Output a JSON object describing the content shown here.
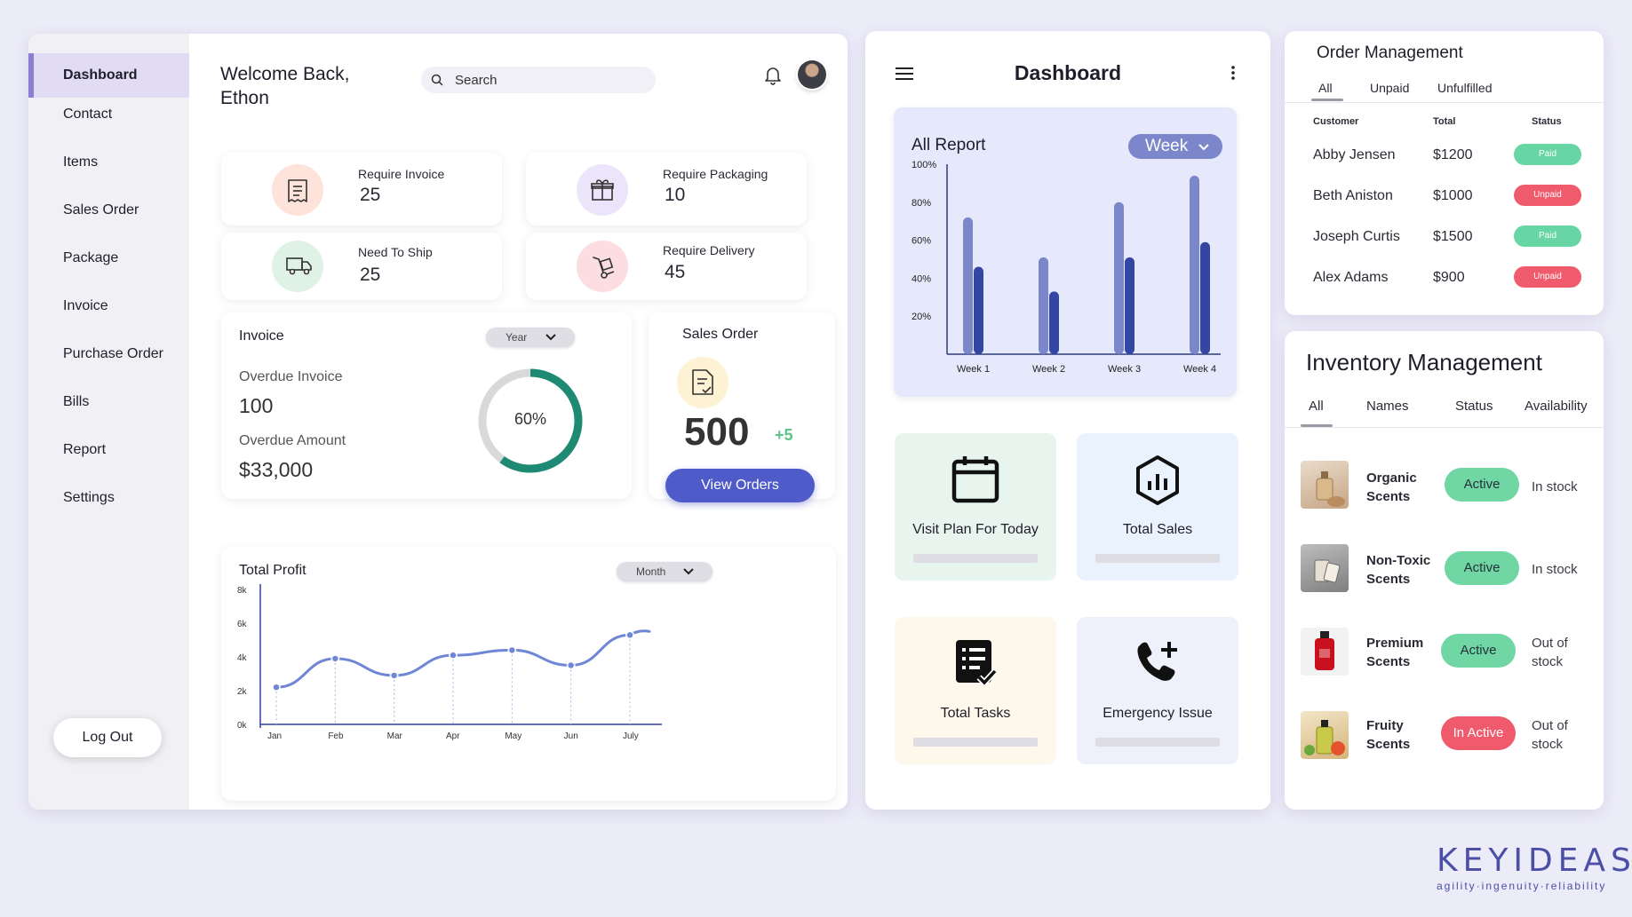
{
  "sidebar": {
    "items": [
      {
        "label": "Dashboard",
        "active": true
      },
      {
        "label": "Contact"
      },
      {
        "label": "Items"
      },
      {
        "label": "Sales Order"
      },
      {
        "label": "Package"
      },
      {
        "label": "Invoice"
      },
      {
        "label": "Purchase Order"
      },
      {
        "label": "Bills"
      },
      {
        "label": "Report"
      },
      {
        "label": "Settings"
      }
    ],
    "logout_label": "Log Out"
  },
  "header": {
    "welcome": "Welcome Back,",
    "user_name": "Ethon",
    "search_placeholder": "Search"
  },
  "stats": [
    {
      "label": "Require Invoice",
      "value": "25",
      "icon": "invoice-icon",
      "color": "#fde3d9"
    },
    {
      "label": "Require Packaging",
      "value": "10",
      "icon": "gift-box-icon",
      "color": "#ece4fb"
    },
    {
      "label": "Need To Ship",
      "value": "25",
      "icon": "truck-icon",
      "color": "#dff2e5"
    },
    {
      "label": "Require Delivery",
      "value": "45",
      "icon": "hand-truck-icon",
      "color": "#fcdde1"
    }
  ],
  "invoice": {
    "title": "Invoice",
    "period": "Year",
    "overdue_invoice_label": "Overdue Invoice",
    "overdue_invoice_value": "100",
    "overdue_amount_label": "Overdue Amount",
    "overdue_amount_value": "$33,000",
    "progress_label": "60%",
    "progress": 0.6,
    "progress_color": "#1f8a73"
  },
  "sales_order": {
    "title": "Sales Order",
    "value": "500",
    "delta": "+5",
    "button_label": "View Orders"
  },
  "profit": {
    "title": "Total Profit",
    "period": "Month"
  },
  "chart_data": [
    {
      "type": "line",
      "title": "Total Profit",
      "categories": [
        "Jan",
        "Feb",
        "Mar",
        "Apr",
        "May",
        "Jun",
        "July"
      ],
      "y_ticks": [
        "8k",
        "6k",
        "4k",
        "2k",
        "0k"
      ],
      "points": [
        {
          "x": "Jan",
          "y": 2.2
        },
        {
          "x": "Feb",
          "y": 3.9
        },
        {
          "x": "Mar",
          "y": 2.9
        },
        {
          "x": "Apr",
          "y": 4.1
        },
        {
          "x": "May",
          "y": 4.4
        },
        {
          "x": "Jun",
          "y": 3.5
        },
        {
          "x": "July",
          "y": 5.3
        }
      ],
      "ylim": [
        0,
        8
      ],
      "color": "#6f86d6"
    },
    {
      "type": "bar",
      "title": "All Report",
      "categories": [
        "Week 1",
        "Week 2",
        "Week 3",
        "Week 4"
      ],
      "y_ticks": [
        "100%",
        "80%",
        "60%",
        "40%",
        "20%"
      ],
      "series": [
        {
          "values": [
            72,
            51,
            80,
            94
          ],
          "color": "#7b87c8"
        },
        {
          "values": [
            46,
            33,
            51,
            59
          ],
          "color": "#3346a3"
        }
      ],
      "ylim": [
        0,
        100
      ]
    }
  ],
  "mobile": {
    "title": "Dashboard",
    "report_title": "All Report",
    "report_period": "Week",
    "tiles": [
      {
        "label": "Visit Plan For Today",
        "icon": "calendar-icon",
        "bg": "#e8f5ee"
      },
      {
        "label": "Total Sales",
        "icon": "hexagon-chart-icon",
        "bg": "#eaf3fd"
      },
      {
        "label": "Total Tasks",
        "icon": "task-list-icon",
        "bg": "#fdf8eb"
      },
      {
        "label": "Emergency Issue",
        "icon": "phone-plus-icon",
        "bg": "#eef0fb"
      }
    ]
  },
  "orders": {
    "title": "Order Management",
    "tabs": [
      "All",
      "Unpaid",
      "Unfulfilled"
    ],
    "columns": [
      "Customer",
      "Total",
      "Status"
    ],
    "rows": [
      {
        "customer": "Abby Jensen",
        "total": "$1200",
        "status": "Paid"
      },
      {
        "customer": "Beth Aniston",
        "total": "$1000",
        "status": "Unpaid"
      },
      {
        "customer": "Joseph Curtis",
        "total": "$1500",
        "status": "Paid"
      },
      {
        "customer": "Alex Adams",
        "total": "$900",
        "status": "Unpaid"
      }
    ]
  },
  "inventory": {
    "title": "Inventory Management",
    "tabs": [
      "All",
      "Names",
      "Status",
      "Availability"
    ],
    "rows": [
      {
        "name": [
          "Organic",
          "Scents"
        ],
        "status": "Active",
        "availability": [
          "In stock"
        ]
      },
      {
        "name": [
          "Non-Toxic",
          "Scents"
        ],
        "status": "Active",
        "availability": [
          "In stock"
        ]
      },
      {
        "name": [
          "Premium",
          "Scents"
        ],
        "status": "Active",
        "availability": [
          "Out of",
          "stock"
        ]
      },
      {
        "name": [
          "Fruity",
          "Scents"
        ],
        "status": "In Active",
        "availability": [
          "Out of",
          "stock"
        ]
      }
    ]
  },
  "brand": {
    "name": "KEYIDEAS",
    "tagline": "agility·ingenuity·reliability"
  }
}
